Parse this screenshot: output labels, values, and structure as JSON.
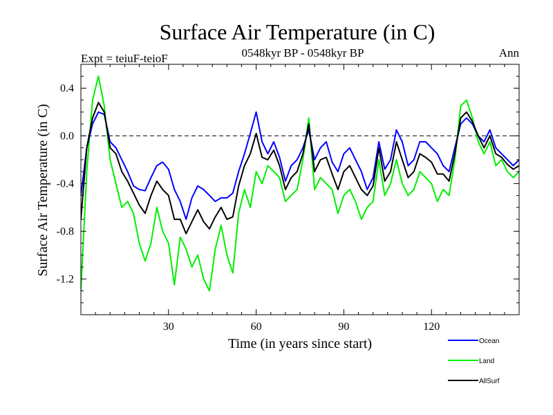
{
  "chart_data": {
    "type": "line",
    "title": "Surface Air Temperature (in C)",
    "subtitle": "0548kyr BP - 0548kyr BP",
    "left_label": "Expt = teiuF-teioF",
    "right_label": "Ann",
    "xlabel": "Time (in years since start)",
    "ylabel": "Surface Air Temperature (in C)",
    "xlim": [
      0,
      150
    ],
    "ylim": [
      -1.5,
      0.6
    ],
    "xticks": [
      30,
      60,
      90,
      120
    ],
    "xtick_labels": [
      "30",
      "60",
      "90",
      "120"
    ],
    "yticks": [
      0.4,
      0.0,
      -0.4,
      -0.8,
      -1.2
    ],
    "ytick_labels": [
      "0.4",
      "0.0",
      "-0.4",
      "-0.8",
      "-1.2"
    ],
    "reference_line": 0.0,
    "series": [
      {
        "name": "Ocean",
        "color": "#0000ff",
        "x": [
          0,
          2,
          4,
          6,
          8,
          10,
          12,
          14,
          16,
          18,
          20,
          22,
          24,
          26,
          28,
          30,
          32,
          34,
          36,
          38,
          40,
          42,
          44,
          46,
          48,
          50,
          52,
          54,
          56,
          58,
          60,
          62,
          64,
          66,
          68,
          70,
          72,
          74,
          76,
          78,
          80,
          82,
          84,
          86,
          88,
          90,
          92,
          94,
          96,
          98,
          100,
          102,
          104,
          106,
          108,
          110,
          112,
          114,
          116,
          118,
          120,
          122,
          124,
          126,
          128,
          130,
          132,
          134,
          136,
          138,
          140,
          142,
          144,
          146,
          148,
          150
        ],
        "values": [
          -0.5,
          -0.1,
          0.1,
          0.2,
          0.18,
          -0.05,
          -0.1,
          -0.2,
          -0.3,
          -0.42,
          -0.45,
          -0.46,
          -0.35,
          -0.25,
          -0.22,
          -0.28,
          -0.45,
          -0.55,
          -0.7,
          -0.52,
          -0.42,
          -0.45,
          -0.5,
          -0.55,
          -0.52,
          -0.52,
          -0.48,
          -0.3,
          -0.15,
          0.02,
          0.2,
          -0.05,
          -0.15,
          -0.05,
          -0.18,
          -0.38,
          -0.25,
          -0.2,
          -0.1,
          0.05,
          -0.2,
          -0.1,
          -0.05,
          -0.22,
          -0.3,
          -0.15,
          -0.1,
          -0.2,
          -0.3,
          -0.45,
          -0.35,
          -0.05,
          -0.28,
          -0.2,
          0.05,
          -0.05,
          -0.25,
          -0.2,
          -0.05,
          -0.05,
          -0.1,
          -0.15,
          -0.25,
          -0.3,
          -0.1,
          0.1,
          0.15,
          0.1,
          0.0,
          -0.05,
          0.05,
          -0.1,
          -0.15,
          -0.2,
          -0.25,
          -0.2
        ]
      },
      {
        "name": "Land",
        "color": "#00ee00",
        "x": [
          0,
          2,
          4,
          6,
          8,
          10,
          12,
          14,
          16,
          18,
          20,
          22,
          24,
          26,
          28,
          30,
          32,
          34,
          36,
          38,
          40,
          42,
          44,
          46,
          48,
          50,
          52,
          54,
          56,
          58,
          60,
          62,
          64,
          66,
          68,
          70,
          72,
          74,
          76,
          78,
          80,
          82,
          84,
          86,
          88,
          90,
          92,
          94,
          96,
          98,
          100,
          102,
          104,
          106,
          108,
          110,
          112,
          114,
          116,
          118,
          120,
          122,
          124,
          126,
          128,
          130,
          132,
          134,
          136,
          138,
          140,
          142,
          144,
          146,
          148,
          150
        ],
        "values": [
          -1.3,
          -0.3,
          0.3,
          0.5,
          0.25,
          -0.2,
          -0.4,
          -0.6,
          -0.55,
          -0.65,
          -0.9,
          -1.05,
          -0.9,
          -0.6,
          -0.8,
          -0.9,
          -1.25,
          -0.85,
          -0.95,
          -1.1,
          -1.0,
          -1.2,
          -1.3,
          -0.95,
          -0.75,
          -1.0,
          -1.15,
          -0.65,
          -0.45,
          -0.6,
          -0.3,
          -0.4,
          -0.25,
          -0.3,
          -0.35,
          -0.55,
          -0.5,
          -0.45,
          -0.2,
          0.15,
          -0.45,
          -0.35,
          -0.4,
          -0.45,
          -0.65,
          -0.5,
          -0.45,
          -0.55,
          -0.7,
          -0.6,
          -0.55,
          -0.2,
          -0.5,
          -0.4,
          -0.2,
          -0.4,
          -0.5,
          -0.45,
          -0.3,
          -0.35,
          -0.4,
          -0.55,
          -0.45,
          -0.5,
          -0.2,
          0.25,
          0.3,
          0.15,
          -0.05,
          -0.15,
          -0.05,
          -0.25,
          -0.2,
          -0.3,
          -0.35,
          -0.3
        ]
      },
      {
        "name": "AllSurf",
        "color": "#000000",
        "x": [
          0,
          2,
          4,
          6,
          8,
          10,
          12,
          14,
          16,
          18,
          20,
          22,
          24,
          26,
          28,
          30,
          32,
          34,
          36,
          38,
          40,
          42,
          44,
          46,
          48,
          50,
          52,
          54,
          56,
          58,
          60,
          62,
          64,
          66,
          68,
          70,
          72,
          74,
          76,
          78,
          80,
          82,
          84,
          86,
          88,
          90,
          92,
          94,
          96,
          98,
          100,
          102,
          104,
          106,
          108,
          110,
          112,
          114,
          116,
          118,
          120,
          122,
          124,
          126,
          128,
          130,
          132,
          134,
          136,
          138,
          140,
          142,
          144,
          146,
          148,
          150
        ],
        "values": [
          -0.7,
          -0.1,
          0.15,
          0.28,
          0.2,
          -0.1,
          -0.15,
          -0.3,
          -0.38,
          -0.48,
          -0.58,
          -0.65,
          -0.5,
          -0.38,
          -0.45,
          -0.5,
          -0.7,
          -0.7,
          -0.82,
          -0.72,
          -0.62,
          -0.72,
          -0.78,
          -0.68,
          -0.6,
          -0.7,
          -0.68,
          -0.42,
          -0.25,
          -0.15,
          0.02,
          -0.18,
          -0.2,
          -0.12,
          -0.25,
          -0.45,
          -0.35,
          -0.3,
          -0.15,
          0.1,
          -0.3,
          -0.2,
          -0.18,
          -0.32,
          -0.45,
          -0.3,
          -0.25,
          -0.35,
          -0.45,
          -0.5,
          -0.42,
          -0.1,
          -0.38,
          -0.3,
          -0.05,
          -0.2,
          -0.35,
          -0.3,
          -0.15,
          -0.18,
          -0.22,
          -0.32,
          -0.32,
          -0.38,
          -0.15,
          0.15,
          0.2,
          0.12,
          0.0,
          -0.1,
          0.0,
          -0.15,
          -0.18,
          -0.24,
          -0.28,
          -0.25
        ]
      }
    ],
    "legend_placement": "bottom-right"
  }
}
